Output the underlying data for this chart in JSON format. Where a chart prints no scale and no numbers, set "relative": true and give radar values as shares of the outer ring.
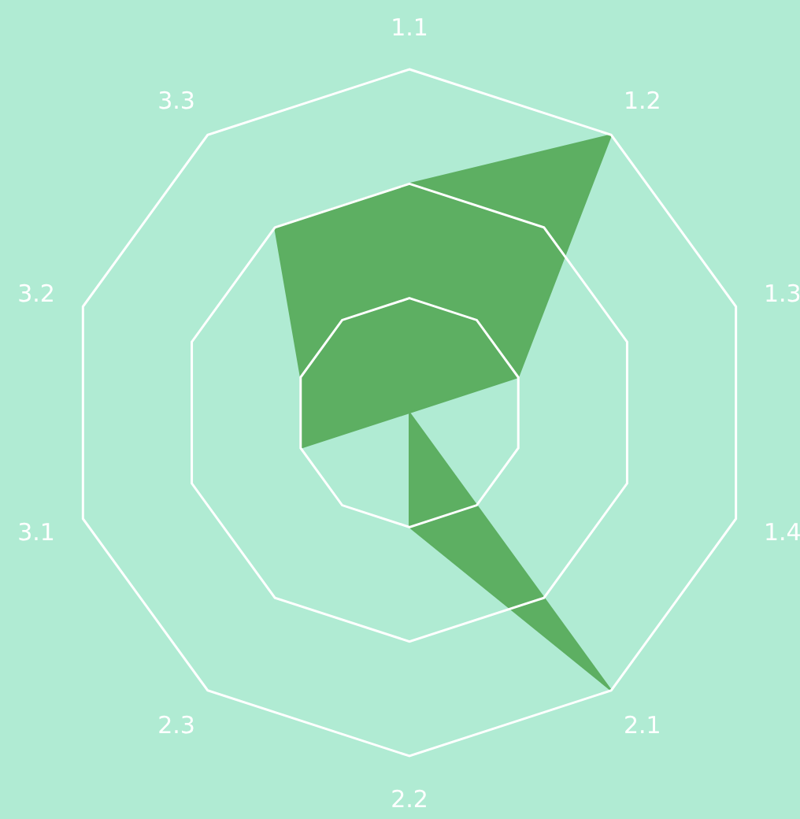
{
  "chart_data": {
    "type": "radar",
    "relative": true,
    "grid": true,
    "categories": [
      "1.1",
      "1.2",
      "1.3",
      "1.4",
      "2.1",
      "2.2",
      "2.3",
      "3.1",
      "3.2",
      "3.3"
    ],
    "series": [
      {
        "color": "#5daf62",
        "values": [
          0.667,
          1,
          0.333,
          0,
          1,
          0.333,
          0,
          0.333,
          0.333,
          0.667
        ]
      }
    ]
  }
}
